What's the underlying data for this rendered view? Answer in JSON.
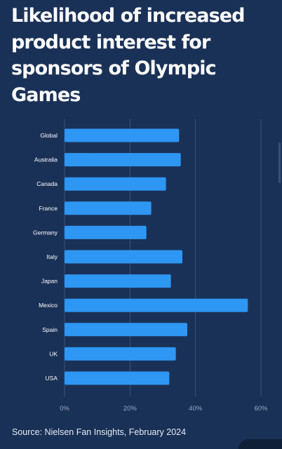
{
  "title_lines": [
    "Likelihood of increased",
    "product interest for",
    "sponsors of Olympic",
    "Games"
  ],
  "source": "Source: Nielsen Fan Insights, February 2024",
  "colors": {
    "background": "#1a3157",
    "bar": "#2e96f3",
    "grid": "#3a5478",
    "label_text": "#ffffff",
    "tick_text": "#9aa8bd"
  },
  "chart_data": {
    "type": "bar",
    "orientation": "horizontal",
    "title": "Likelihood of increased product interest for sponsors of Olympic Games",
    "categories": [
      "Global",
      "Australia",
      "Canada",
      "France",
      "Germany",
      "Italy",
      "Japan",
      "Mexico",
      "Spain",
      "UK",
      "USA"
    ],
    "values": [
      35,
      35.5,
      31,
      26.5,
      25,
      36,
      32.5,
      56,
      37.5,
      34,
      32
    ],
    "x_ticks": [
      "0%",
      "20%",
      "40%",
      "60%"
    ],
    "x_tick_values": [
      0,
      20,
      40,
      60
    ],
    "xlim": [
      0,
      60
    ],
    "unit": "%",
    "grid": true,
    "legend": "none"
  }
}
